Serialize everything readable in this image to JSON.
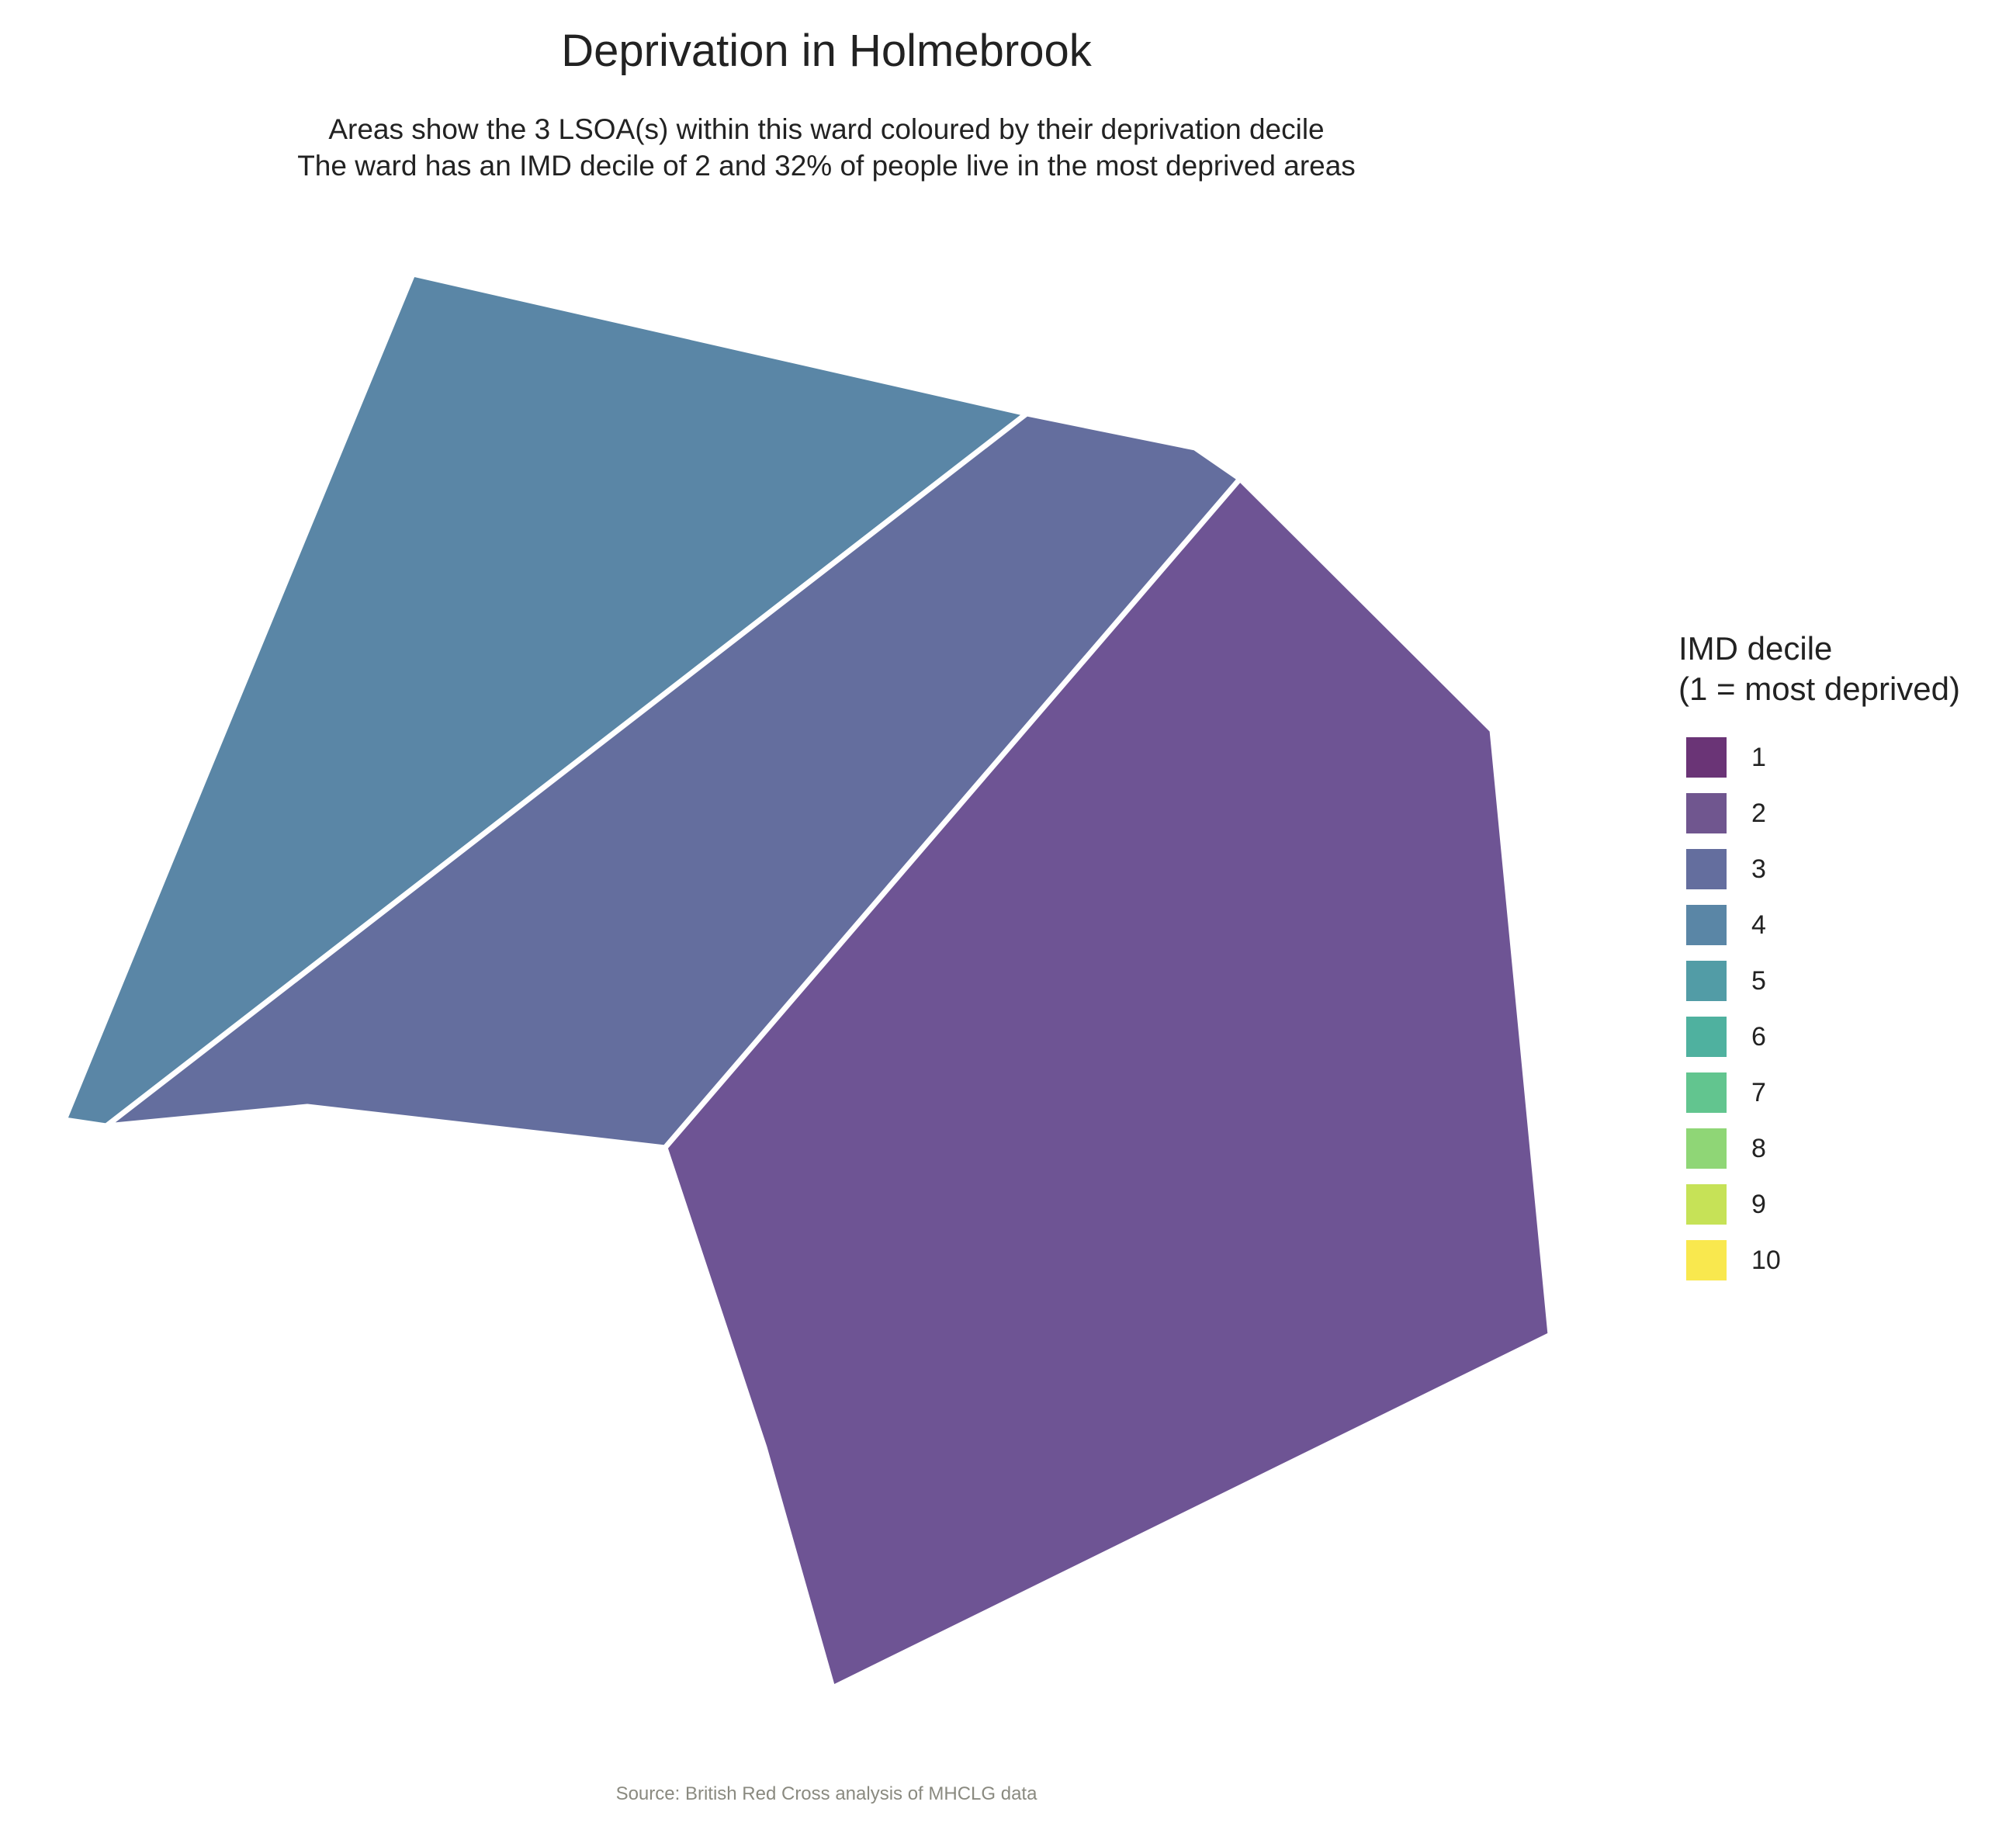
{
  "header": {
    "title": "Deprivation in Holmebrook",
    "subtitle_line1": "Areas show the 3 LSOA(s) within this ward coloured by their deprivation decile",
    "subtitle_line2": "The ward has an IMD decile of 2 and 32% of people live in the most deprived areas"
  },
  "map": {
    "ward": "Holmebrook",
    "lsoas": [
      {
        "name": "lsoa-area-decile-4",
        "imd_decile": 4,
        "fill": "#5a86a6"
      },
      {
        "name": "lsoa-area-decile-3",
        "imd_decile": 3,
        "fill": "#646e9e"
      },
      {
        "name": "lsoa-area-decile-2",
        "imd_decile": 2,
        "fill": "#6e5494"
      }
    ],
    "border_color": "#ffffff"
  },
  "legend": {
    "title_line1": "IMD decile",
    "title_line2": "(1 = most deprived)",
    "items": [
      {
        "label": "1",
        "color": "#6a3476"
      },
      {
        "label": "2",
        "color": "#70568f"
      },
      {
        "label": "3",
        "color": "#646e9e"
      },
      {
        "label": "4",
        "color": "#5a86a6"
      },
      {
        "label": "5",
        "color": "#529ca6"
      },
      {
        "label": "6",
        "color": "#4fb19f"
      },
      {
        "label": "7",
        "color": "#62c58f"
      },
      {
        "label": "8",
        "color": "#8fd676"
      },
      {
        "label": "9",
        "color": "#c6e257"
      },
      {
        "label": "10",
        "color": "#f9e84e"
      }
    ]
  },
  "caption": {
    "text": "Source: British Red Cross analysis of MHCLG data"
  }
}
